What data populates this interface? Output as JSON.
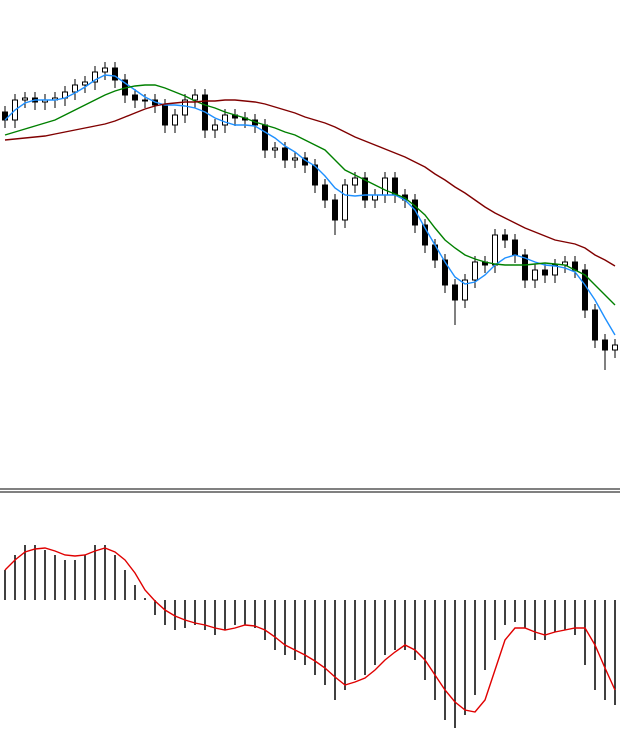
{
  "chart_data": [
    {
      "type": "candlestick",
      "ylim": [
        0,
        490
      ],
      "color": "#000000",
      "open": [
        378,
        370,
        390,
        392,
        388,
        390,
        392,
        398,
        405,
        408,
        418,
        422,
        410,
        395,
        390,
        390,
        385,
        365,
        375,
        390,
        395,
        360,
        365,
        375,
        372,
        370,
        365,
        340,
        342,
        330,
        332,
        325,
        305,
        290,
        270,
        305,
        312,
        290,
        295,
        312,
        295,
        290,
        265,
        245,
        230,
        205,
        190,
        210,
        228,
        225,
        255,
        250,
        235,
        210,
        220,
        215,
        225,
        228,
        220,
        180,
        150,
        140
      ],
      "high": [
        384,
        396,
        398,
        398,
        396,
        398,
        404,
        411,
        414,
        424,
        428,
        428,
        416,
        401,
        396,
        396,
        391,
        381,
        396,
        401,
        401,
        371,
        381,
        381,
        378,
        376,
        371,
        348,
        348,
        338,
        338,
        331,
        311,
        296,
        311,
        318,
        318,
        301,
        318,
        318,
        301,
        296,
        271,
        251,
        236,
        211,
        216,
        234,
        234,
        261,
        261,
        256,
        241,
        226,
        226,
        231,
        234,
        234,
        226,
        186,
        156,
        151
      ],
      "low": [
        362,
        362,
        382,
        380,
        380,
        382,
        384,
        390,
        397,
        400,
        410,
        402,
        387,
        382,
        382,
        377,
        357,
        357,
        367,
        382,
        352,
        352,
        357,
        364,
        362,
        357,
        332,
        332,
        322,
        322,
        317,
        297,
        282,
        255,
        262,
        297,
        282,
        282,
        287,
        287,
        282,
        257,
        237,
        222,
        197,
        165,
        182,
        202,
        217,
        217,
        242,
        227,
        202,
        202,
        207,
        207,
        217,
        212,
        172,
        142,
        120,
        132
      ],
      "close": [
        370,
        390,
        392,
        388,
        390,
        392,
        398,
        405,
        408,
        418,
        422,
        410,
        395,
        390,
        390,
        385,
        365,
        375,
        390,
        395,
        360,
        365,
        375,
        372,
        370,
        365,
        340,
        342,
        330,
        332,
        325,
        305,
        290,
        270,
        305,
        312,
        290,
        295,
        312,
        295,
        290,
        265,
        245,
        230,
        205,
        190,
        210,
        228,
        225,
        255,
        250,
        235,
        210,
        220,
        215,
        225,
        228,
        220,
        180,
        150,
        140,
        145
      ],
      "series": [
        {
          "color": "#1e90ff",
          "values": [
            370,
            380,
            387,
            390,
            390,
            390,
            392,
            397,
            403,
            410,
            415,
            414,
            407,
            400,
            393,
            388,
            385,
            385,
            384,
            382,
            378,
            372,
            368,
            365,
            365,
            364,
            358,
            352,
            344,
            338,
            330,
            324,
            314,
            302,
            295,
            294,
            295,
            295,
            295,
            295,
            290,
            280,
            262,
            245,
            228,
            213,
            206,
            208,
            215,
            225,
            232,
            235,
            232,
            228,
            225,
            224,
            222,
            218,
            205,
            190,
            172,
            155
          ]
        },
        {
          "color": "#008000",
          "values": [
            355,
            358,
            361,
            364,
            367,
            370,
            375,
            380,
            385,
            390,
            395,
            399,
            402,
            404,
            405,
            405,
            402,
            398,
            394,
            389,
            385,
            382,
            378,
            375,
            372,
            368,
            365,
            362,
            358,
            355,
            350,
            345,
            340,
            330,
            320,
            315,
            310,
            305,
            300,
            296,
            292,
            284,
            275,
            262,
            250,
            242,
            235,
            231,
            228,
            226,
            225,
            225,
            225,
            226,
            227,
            226,
            225,
            220,
            215,
            205,
            195,
            185
          ]
        },
        {
          "color": "#800000",
          "values": [
            350,
            351,
            352,
            353,
            354,
            356,
            358,
            360,
            362,
            364,
            366,
            369,
            373,
            377,
            381,
            384,
            386,
            387,
            388,
            388,
            389,
            389,
            390,
            390,
            389,
            388,
            386,
            383,
            380,
            377,
            373,
            370,
            367,
            363,
            358,
            353,
            349,
            345,
            341,
            337,
            333,
            328,
            323,
            316,
            310,
            303,
            297,
            290,
            283,
            277,
            272,
            267,
            262,
            258,
            254,
            250,
            248,
            246,
            242,
            235,
            230,
            224
          ]
        }
      ]
    },
    {
      "type": "bar",
      "ylim": [
        -150,
        105
      ],
      "color": "#000000",
      "values": [
        30,
        45,
        55,
        55,
        50,
        45,
        40,
        40,
        45,
        55,
        55,
        45,
        30,
        15,
        2,
        -15,
        -25,
        -30,
        -28,
        -25,
        -30,
        -35,
        -30,
        -25,
        -25,
        -28,
        -40,
        -50,
        -55,
        -60,
        -65,
        -75,
        -85,
        -100,
        -90,
        -80,
        -75,
        -65,
        -55,
        -50,
        -50,
        -60,
        -80,
        -100,
        -120,
        -128,
        -115,
        -95,
        -70,
        -40,
        -25,
        -22,
        -28,
        -40,
        -40,
        -32,
        -30,
        -35,
        -65,
        -90,
        -100,
        -105
      ],
      "series": [
        {
          "color": "#e00000",
          "values": [
            30,
            40,
            48,
            51,
            52,
            49,
            45,
            44,
            45,
            49,
            52,
            48,
            40,
            27,
            10,
            -1,
            -10,
            -16,
            -20,
            -23,
            -25,
            -28,
            -30,
            -28,
            -25,
            -26,
            -30,
            -37,
            -45,
            -50,
            -55,
            -61,
            -68,
            -77,
            -85,
            -82,
            -78,
            -70,
            -60,
            -52,
            -45,
            -50,
            -60,
            -75,
            -90,
            -102,
            -110,
            -112,
            -100,
            -70,
            -40,
            -28,
            -28,
            -32,
            -35,
            -32,
            -30,
            -28,
            -28,
            -45,
            -68,
            -90
          ]
        }
      ]
    }
  ]
}
